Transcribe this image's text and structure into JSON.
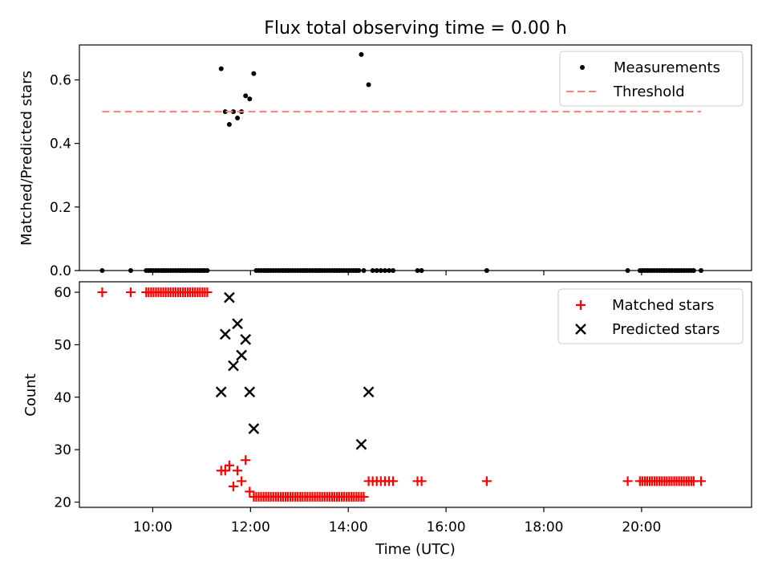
{
  "figure": {
    "title": "Flux total observing time = 0.00 h",
    "xlabel": "Time (UTC)"
  },
  "chart_data": [
    {
      "type": "scatter",
      "ylabel": "Matched/Predicted stars",
      "xlim": [
        "08:30",
        "22:15"
      ],
      "ylim": [
        0,
        0.71
      ],
      "yticks": [
        0.0,
        0.2,
        0.4,
        0.6
      ],
      "ytick_labels": [
        "0.0",
        "0.2",
        "0.4",
        "0.6"
      ],
      "legend_position": "upper right",
      "grid": false,
      "series": [
        {
          "name": "Measurements",
          "marker": "dot",
          "color": "#000000",
          "x": [
            "08:58",
            "09:33",
            "09:52",
            "09:55",
            "09:58",
            "10:01",
            "10:04",
            "10:07",
            "10:10",
            "10:13",
            "10:16",
            "10:19",
            "10:22",
            "10:25",
            "10:28",
            "10:31",
            "10:34",
            "10:37",
            "10:40",
            "10:43",
            "10:46",
            "10:49",
            "10:52",
            "10:55",
            "10:58",
            "11:01",
            "11:04",
            "11:07",
            "11:24",
            "11:29",
            "11:34",
            "11:39",
            "11:44",
            "11:49",
            "11:54",
            "11:59",
            "12:04",
            "12:07",
            "12:10",
            "12:13",
            "12:16",
            "12:19",
            "12:22",
            "12:25",
            "12:28",
            "12:31",
            "12:34",
            "12:37",
            "12:40",
            "12:43",
            "12:46",
            "12:49",
            "12:52",
            "12:55",
            "12:58",
            "13:01",
            "13:04",
            "13:07",
            "13:10",
            "13:13",
            "13:16",
            "13:19",
            "13:22",
            "13:25",
            "13:28",
            "13:31",
            "13:34",
            "13:37",
            "13:40",
            "13:43",
            "13:46",
            "13:49",
            "13:52",
            "13:55",
            "13:58",
            "14:01",
            "14:04",
            "14:07",
            "14:10",
            "14:13",
            "14:16",
            "14:19",
            "14:25",
            "14:30",
            "14:35",
            "14:40",
            "14:45",
            "14:50",
            "14:55",
            "15:25",
            "15:30",
            "16:50",
            "19:43",
            "19:58",
            "20:01",
            "20:04",
            "20:07",
            "20:10",
            "20:13",
            "20:16",
            "20:19",
            "20:22",
            "20:25",
            "20:28",
            "20:31",
            "20:34",
            "20:37",
            "20:40",
            "20:43",
            "20:46",
            "20:49",
            "20:52",
            "20:55",
            "20:58",
            "21:01",
            "21:04",
            "21:13"
          ],
          "y": [
            0,
            0,
            0,
            0,
            0,
            0,
            0,
            0,
            0,
            0,
            0,
            0,
            0,
            0,
            0,
            0,
            0,
            0,
            0,
            0,
            0,
            0,
            0,
            0,
            0,
            0,
            0,
            0,
            0.635,
            0.5,
            0.46,
            0.5,
            0.48,
            0.5,
            0.55,
            0.54,
            0.62,
            0,
            0,
            0,
            0,
            0,
            0,
            0,
            0,
            0,
            0,
            0,
            0,
            0,
            0,
            0,
            0,
            0,
            0,
            0,
            0,
            0,
            0,
            0,
            0,
            0,
            0,
            0,
            0,
            0,
            0,
            0,
            0,
            0,
            0,
            0,
            0,
            0,
            0,
            0,
            0,
            0,
            0,
            0,
            0.68,
            0,
            0.585,
            0,
            0,
            0,
            0,
            0,
            0,
            0,
            0,
            0,
            0,
            0,
            0,
            0,
            0,
            0,
            0,
            0,
            0,
            0,
            0,
            0,
            0,
            0,
            0,
            0,
            0,
            0,
            0,
            0,
            0,
            0,
            0,
            0,
            0
          ]
        },
        {
          "name": "Threshold",
          "style": "dashed",
          "color": "#ff8080",
          "x": [
            "08:58",
            "21:13"
          ],
          "y": [
            0.5,
            0.5
          ]
        }
      ]
    },
    {
      "type": "scatter",
      "ylabel": "Count",
      "xlim": [
        "08:30",
        "22:15"
      ],
      "ylim": [
        19,
        62
      ],
      "yticks": [
        20,
        30,
        40,
        50,
        60
      ],
      "ytick_labels": [
        "20",
        "30",
        "40",
        "50",
        "60"
      ],
      "xticks": [
        "10:00",
        "12:00",
        "14:00",
        "16:00",
        "18:00",
        "20:00"
      ],
      "xtick_labels": [
        "10:00",
        "12:00",
        "14:00",
        "16:00",
        "18:00",
        "20:00"
      ],
      "legend_position": "upper right",
      "grid": false,
      "series": [
        {
          "name": "Matched stars",
          "marker": "plus",
          "color": "#ff0000",
          "x": [
            "08:58",
            "09:33",
            "09:52",
            "09:55",
            "09:58",
            "10:01",
            "10:04",
            "10:07",
            "10:10",
            "10:13",
            "10:16",
            "10:19",
            "10:22",
            "10:25",
            "10:28",
            "10:31",
            "10:34",
            "10:37",
            "10:40",
            "10:43",
            "10:46",
            "10:49",
            "10:52",
            "10:55",
            "10:58",
            "11:01",
            "11:04",
            "11:07",
            "11:24",
            "11:29",
            "11:34",
            "11:39",
            "11:44",
            "11:49",
            "11:54",
            "11:59",
            "12:04",
            "12:07",
            "12:10",
            "12:13",
            "12:16",
            "12:19",
            "12:22",
            "12:25",
            "12:28",
            "12:31",
            "12:34",
            "12:37",
            "12:40",
            "12:43",
            "12:46",
            "12:49",
            "12:52",
            "12:55",
            "12:58",
            "13:01",
            "13:04",
            "13:07",
            "13:10",
            "13:13",
            "13:16",
            "13:19",
            "13:22",
            "13:25",
            "13:28",
            "13:31",
            "13:34",
            "13:37",
            "13:40",
            "13:43",
            "13:46",
            "13:49",
            "13:52",
            "13:55",
            "13:58",
            "14:01",
            "14:04",
            "14:07",
            "14:10",
            "14:13",
            "14:16",
            "14:19",
            "14:25",
            "14:30",
            "14:35",
            "14:40",
            "14:45",
            "14:50",
            "14:55",
            "15:25",
            "15:30",
            "16:50",
            "19:43",
            "19:58",
            "20:01",
            "20:04",
            "20:07",
            "20:10",
            "20:13",
            "20:16",
            "20:19",
            "20:22",
            "20:25",
            "20:28",
            "20:31",
            "20:34",
            "20:37",
            "20:40",
            "20:43",
            "20:46",
            "20:49",
            "20:52",
            "20:55",
            "20:58",
            "21:01",
            "21:04",
            "21:13"
          ],
          "y": [
            60,
            60,
            60,
            60,
            60,
            60,
            60,
            60,
            60,
            60,
            60,
            60,
            60,
            60,
            60,
            60,
            60,
            60,
            60,
            60,
            60,
            60,
            60,
            60,
            60,
            60,
            60,
            60,
            26,
            26,
            27,
            23,
            26,
            24,
            28,
            22,
            21,
            21,
            21,
            21,
            21,
            21,
            21,
            21,
            21,
            21,
            21,
            21,
            21,
            21,
            21,
            21,
            21,
            21,
            21,
            21,
            21,
            21,
            21,
            21,
            21,
            21,
            21,
            21,
            21,
            21,
            21,
            21,
            21,
            21,
            21,
            21,
            21,
            21,
            21,
            21,
            21,
            21,
            21,
            21,
            21,
            21,
            24,
            24,
            24,
            24,
            24,
            24,
            24,
            24,
            24,
            24,
            24,
            24,
            24,
            24,
            24,
            24,
            24,
            24,
            24,
            24,
            24,
            24,
            24,
            24,
            24,
            24,
            24,
            24,
            24,
            24,
            24,
            24,
            24,
            24,
            24
          ]
        },
        {
          "name": "Predicted stars",
          "marker": "x",
          "color": "#000000",
          "x": [
            "11:24",
            "11:29",
            "11:34",
            "11:39",
            "11:44",
            "11:49",
            "11:54",
            "11:59",
            "12:04",
            "14:16",
            "14:25"
          ],
          "y": [
            41,
            52,
            59,
            46,
            54,
            48,
            51,
            41,
            34,
            31,
            41
          ]
        }
      ]
    }
  ]
}
